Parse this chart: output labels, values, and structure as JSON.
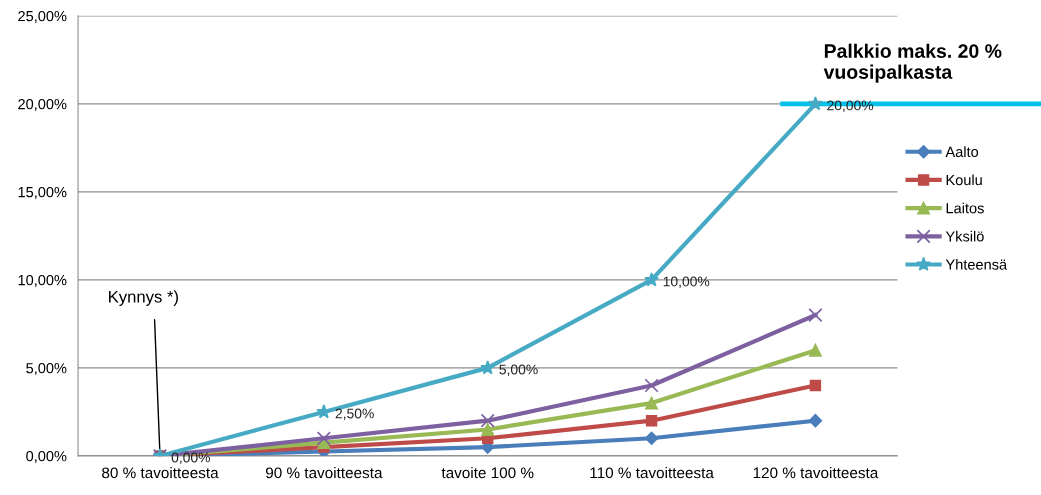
{
  "chart_data": {
    "type": "line",
    "categories": [
      "80 % tavoitteesta",
      "90 % tavoitteesta",
      "tavoite 100 %",
      "110 % tavoitteesta",
      "120 % tavoitteesta"
    ],
    "series": [
      {
        "name": "Aalto",
        "color": "#4a7ebb",
        "marker": "diamond",
        "values": [
          0,
          0.25,
          0.5,
          1,
          2
        ]
      },
      {
        "name": "Koulu",
        "color": "#be4b48",
        "marker": "square",
        "values": [
          0,
          0.5,
          1,
          2,
          4
        ]
      },
      {
        "name": "Laitos",
        "color": "#98b954",
        "marker": "triangle",
        "values": [
          0,
          0.75,
          1.5,
          3,
          6
        ]
      },
      {
        "name": "Yksilö",
        "color": "#7d60a0",
        "marker": "cross",
        "values": [
          0,
          1,
          2,
          4,
          8
        ]
      },
      {
        "name": "Yhteensä",
        "color": "#46aac5",
        "marker": "star",
        "values": [
          0,
          2.5,
          5,
          10,
          20
        ],
        "value_labels": [
          "0,00%",
          "2,50%",
          "5,00%",
          "10,00%",
          "20,00%"
        ]
      }
    ],
    "ylim": [
      0,
      25
    ],
    "yticks": [
      {
        "value": 0,
        "label": "0,00%"
      },
      {
        "value": 5,
        "label": "5,00%"
      },
      {
        "value": 10,
        "label": "10,00%"
      },
      {
        "value": 15,
        "label": "15,00%"
      },
      {
        "value": 20,
        "label": "20,00%"
      },
      {
        "value": 25,
        "label": "25,00%"
      }
    ],
    "grid": "y",
    "legend": "right",
    "ref_lines": [
      {
        "axis": "y",
        "value": 20,
        "label": "Palkkio maks. 20 % vuosipalkasta",
        "color": "#00c0e8"
      }
    ],
    "annotations": [
      {
        "text": "Kynnys *)",
        "x": "80 % tavoitteesta",
        "y": 0
      }
    ]
  }
}
